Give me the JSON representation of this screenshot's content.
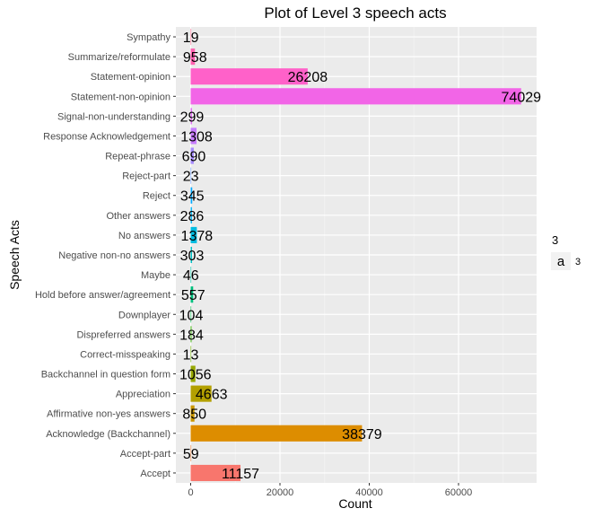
{
  "chart_data": {
    "type": "bar",
    "orientation": "horizontal",
    "title": "Plot of Level 3 speech acts",
    "xlabel": "Count",
    "ylabel": "Speech Acts",
    "xlim": [
      0,
      75000
    ],
    "x_ticks": [
      0,
      20000,
      40000,
      60000
    ],
    "grid": true,
    "legend": {
      "title": "3",
      "key_glyph": "a",
      "label": "3",
      "position": "right"
    },
    "categories": [
      "Accept",
      "Accept-part",
      "Acknowledge (Backchannel)",
      "Affirmative non-yes answers",
      "Appreciation",
      "Backchannel in question form",
      "Correct-misspeaking",
      "Dispreferred answers",
      "Downplayer",
      "Hold before answer/agreement",
      "Maybe",
      "Negative non-no answers",
      "No answers",
      "Other answers",
      "Reject",
      "Reject-part",
      "Repeat-phrase",
      "Response Acknowledgement",
      "Signal-non-understanding",
      "Statement-non-opinion",
      "Statement-opinion",
      "Summarize/reformulate",
      "Sympathy"
    ],
    "values": [
      11157,
      59,
      38379,
      850,
      4663,
      1056,
      13,
      184,
      104,
      557,
      46,
      303,
      1378,
      286,
      345,
      23,
      690,
      1308,
      299,
      74029,
      26208,
      958,
      19
    ],
    "value_labels": [
      "11157",
      "59",
      "38379",
      "850",
      "4663",
      "1056",
      "13",
      "184",
      "104",
      "557",
      "46",
      "303",
      "1378",
      "286",
      "345",
      "23",
      "690",
      "1308",
      "299",
      "74029",
      "26208",
      "958",
      "19"
    ],
    "colors": [
      "#F8766D",
      "#EC823C",
      "#DD8D00",
      "#CA9700",
      "#B3A000",
      "#97A800",
      "#72B000",
      "#39B600",
      "#00BB4E",
      "#00BF7D",
      "#00C1A3",
      "#00C0C5",
      "#00BCE1",
      "#00B5F6",
      "#00A9FF",
      "#6B9EFF",
      "#A58AFF",
      "#C77CFF",
      "#E36EF6",
      "#F265E7",
      "#FF61C9",
      "#FF62B0",
      "#FF6C91"
    ]
  }
}
